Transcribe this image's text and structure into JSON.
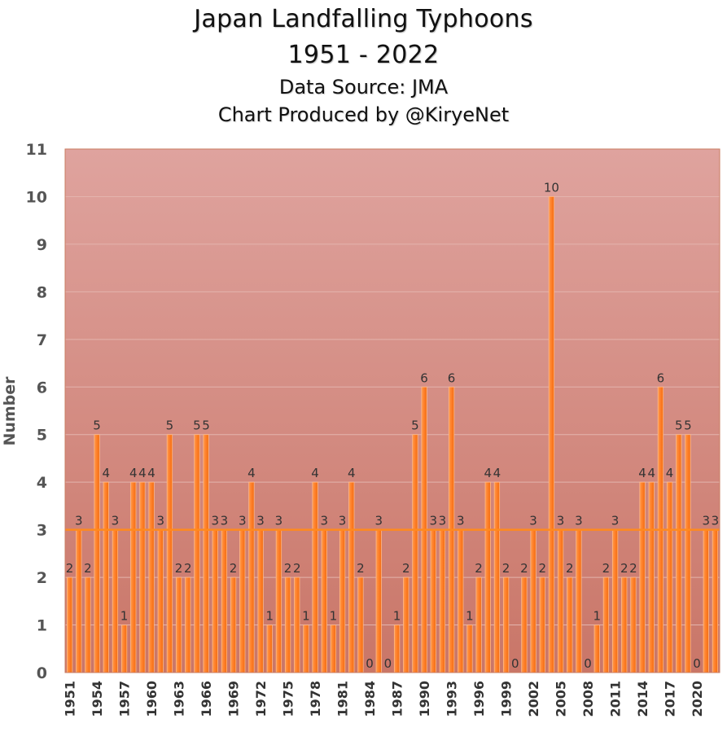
{
  "chart_data": {
    "type": "bar",
    "title_lines": [
      "Japan Landfalling Typhoons",
      "1951 - 2022"
    ],
    "subtitle_lines": [
      "Data Source: JMA",
      "Chart Produced by @KiryeNet"
    ],
    "xlabel": "",
    "ylabel": "Number",
    "ylim": [
      0,
      11
    ],
    "yticks": [
      0,
      1,
      2,
      3,
      4,
      5,
      6,
      7,
      8,
      9,
      10,
      11
    ],
    "grid": true,
    "legend": "none",
    "trend_line": {
      "value": 3
    },
    "categories": [
      1951,
      1952,
      1953,
      1954,
      1955,
      1956,
      1957,
      1958,
      1959,
      1960,
      1961,
      1962,
      1963,
      1964,
      1965,
      1966,
      1967,
      1968,
      1969,
      1970,
      1971,
      1972,
      1973,
      1974,
      1975,
      1976,
      1977,
      1978,
      1979,
      1980,
      1981,
      1982,
      1983,
      1984,
      1985,
      1986,
      1987,
      1988,
      1989,
      1990,
      1991,
      1992,
      1993,
      1994,
      1995,
      1996,
      1997,
      1998,
      1999,
      2000,
      2001,
      2002,
      2003,
      2004,
      2005,
      2006,
      2007,
      2008,
      2009,
      2010,
      2011,
      2012,
      2013,
      2014,
      2015,
      2016,
      2017,
      2018,
      2019,
      2020,
      2021,
      2022
    ],
    "x_tick_labels": [
      "1951",
      "1954",
      "1957",
      "1960",
      "1963",
      "1966",
      "1969",
      "1972",
      "1975",
      "1978",
      "1981",
      "1984",
      "1987",
      "1990",
      "1993",
      "1996",
      "1999",
      "2002",
      "2005",
      "2008",
      "2011",
      "2014",
      "2017",
      "2020"
    ],
    "values": [
      2,
      3,
      2,
      5,
      4,
      3,
      1,
      4,
      4,
      4,
      3,
      5,
      2,
      2,
      5,
      5,
      3,
      3,
      2,
      3,
      4,
      3,
      1,
      3,
      2,
      2,
      1,
      4,
      3,
      1,
      3,
      4,
      2,
      0,
      3,
      0,
      1,
      2,
      5,
      6,
      3,
      3,
      6,
      3,
      1,
      2,
      4,
      4,
      2,
      0,
      2,
      3,
      2,
      10,
      3,
      2,
      3,
      0,
      1,
      2,
      3,
      2,
      2,
      4,
      4,
      6,
      4,
      5,
      5,
      0,
      3,
      3
    ],
    "colors": {
      "bar_fill": "#ff7f27",
      "bar_stroke": "#ffb888",
      "trend_line": "#ff8a1e",
      "plot_bg_top": "#dfa39e",
      "plot_bg_bottom": "#c97668",
      "grid": "#e4b4ad"
    }
  }
}
